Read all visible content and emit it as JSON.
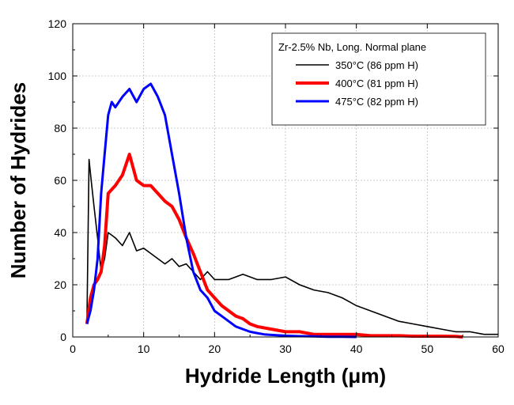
{
  "chart_data": {
    "type": "line",
    "xlabel": "Hydride Length (μm)",
    "ylabel": "Number of Hydrides",
    "xlim": [
      0,
      60
    ],
    "ylim": [
      0,
      120
    ],
    "xticks": [
      0,
      10,
      20,
      30,
      40,
      50,
      60
    ],
    "yticks": [
      0,
      20,
      40,
      60,
      80,
      100,
      120
    ],
    "grid": true,
    "legend_title": "Zr-2.5% Nb, Long. Normal plane",
    "legend_position": "top-right",
    "series": [
      {
        "name": "350°C (86 ppm H)",
        "color": "#000000",
        "x": [
          2,
          2.3,
          2.6,
          3,
          3.5,
          4,
          4.5,
          5,
          6,
          7,
          8,
          9,
          10,
          11,
          12,
          13,
          14,
          15,
          16,
          17,
          18,
          19,
          20,
          22,
          24,
          26,
          28,
          30,
          32,
          34,
          36,
          38,
          40,
          42,
          44,
          46,
          48,
          50,
          52,
          54,
          56,
          58,
          60
        ],
        "y": [
          5,
          68,
          60,
          50,
          38,
          25,
          30,
          40,
          38,
          35,
          40,
          33,
          34,
          32,
          30,
          28,
          30,
          27,
          28,
          25,
          22,
          25,
          22,
          22,
          24,
          22,
          22,
          23,
          20,
          18,
          17,
          15,
          12,
          10,
          8,
          6,
          5,
          4,
          3,
          2,
          2,
          1,
          1
        ]
      },
      {
        "name": "400°C (81 ppm H)",
        "color": "#ff0000",
        "x": [
          2,
          2.5,
          3,
          3.5,
          4,
          4.5,
          5,
          6,
          7,
          8,
          9,
          10,
          11,
          12,
          13,
          14,
          15,
          16,
          17,
          18,
          19,
          20,
          21,
          22,
          23,
          24,
          25,
          26,
          28,
          30,
          32,
          34,
          36,
          38,
          40,
          42,
          44,
          46,
          48,
          50,
          52,
          54,
          55
        ],
        "y": [
          5,
          15,
          20,
          22,
          25,
          35,
          55,
          58,
          62,
          70,
          60,
          58,
          58,
          55,
          52,
          50,
          45,
          38,
          32,
          25,
          18,
          15,
          12,
          10,
          8,
          7,
          5,
          4,
          3,
          2,
          2,
          1,
          1,
          1,
          1,
          0.5,
          0.5,
          0.5,
          0.3,
          0.3,
          0.3,
          0.2,
          0
        ]
      },
      {
        "name": "475°C (82 ppm H)",
        "color": "#0000ff",
        "x": [
          2,
          2.5,
          3,
          3.5,
          4,
          4.5,
          5,
          5.5,
          6,
          7,
          8,
          9,
          10,
          11,
          12,
          13,
          14,
          15,
          16,
          17,
          18,
          19,
          20,
          21,
          22,
          23,
          24,
          25,
          26,
          27,
          28,
          30,
          32,
          34,
          36,
          38,
          40
        ],
        "y": [
          5,
          10,
          18,
          30,
          55,
          70,
          85,
          90,
          88,
          92,
          95,
          90,
          95,
          97,
          92,
          85,
          70,
          55,
          38,
          25,
          18,
          15,
          10,
          8,
          6,
          4,
          3,
          2,
          1.5,
          1,
          0.8,
          0.5,
          0.3,
          0.2,
          0.1,
          0.1,
          0
        ]
      }
    ]
  }
}
